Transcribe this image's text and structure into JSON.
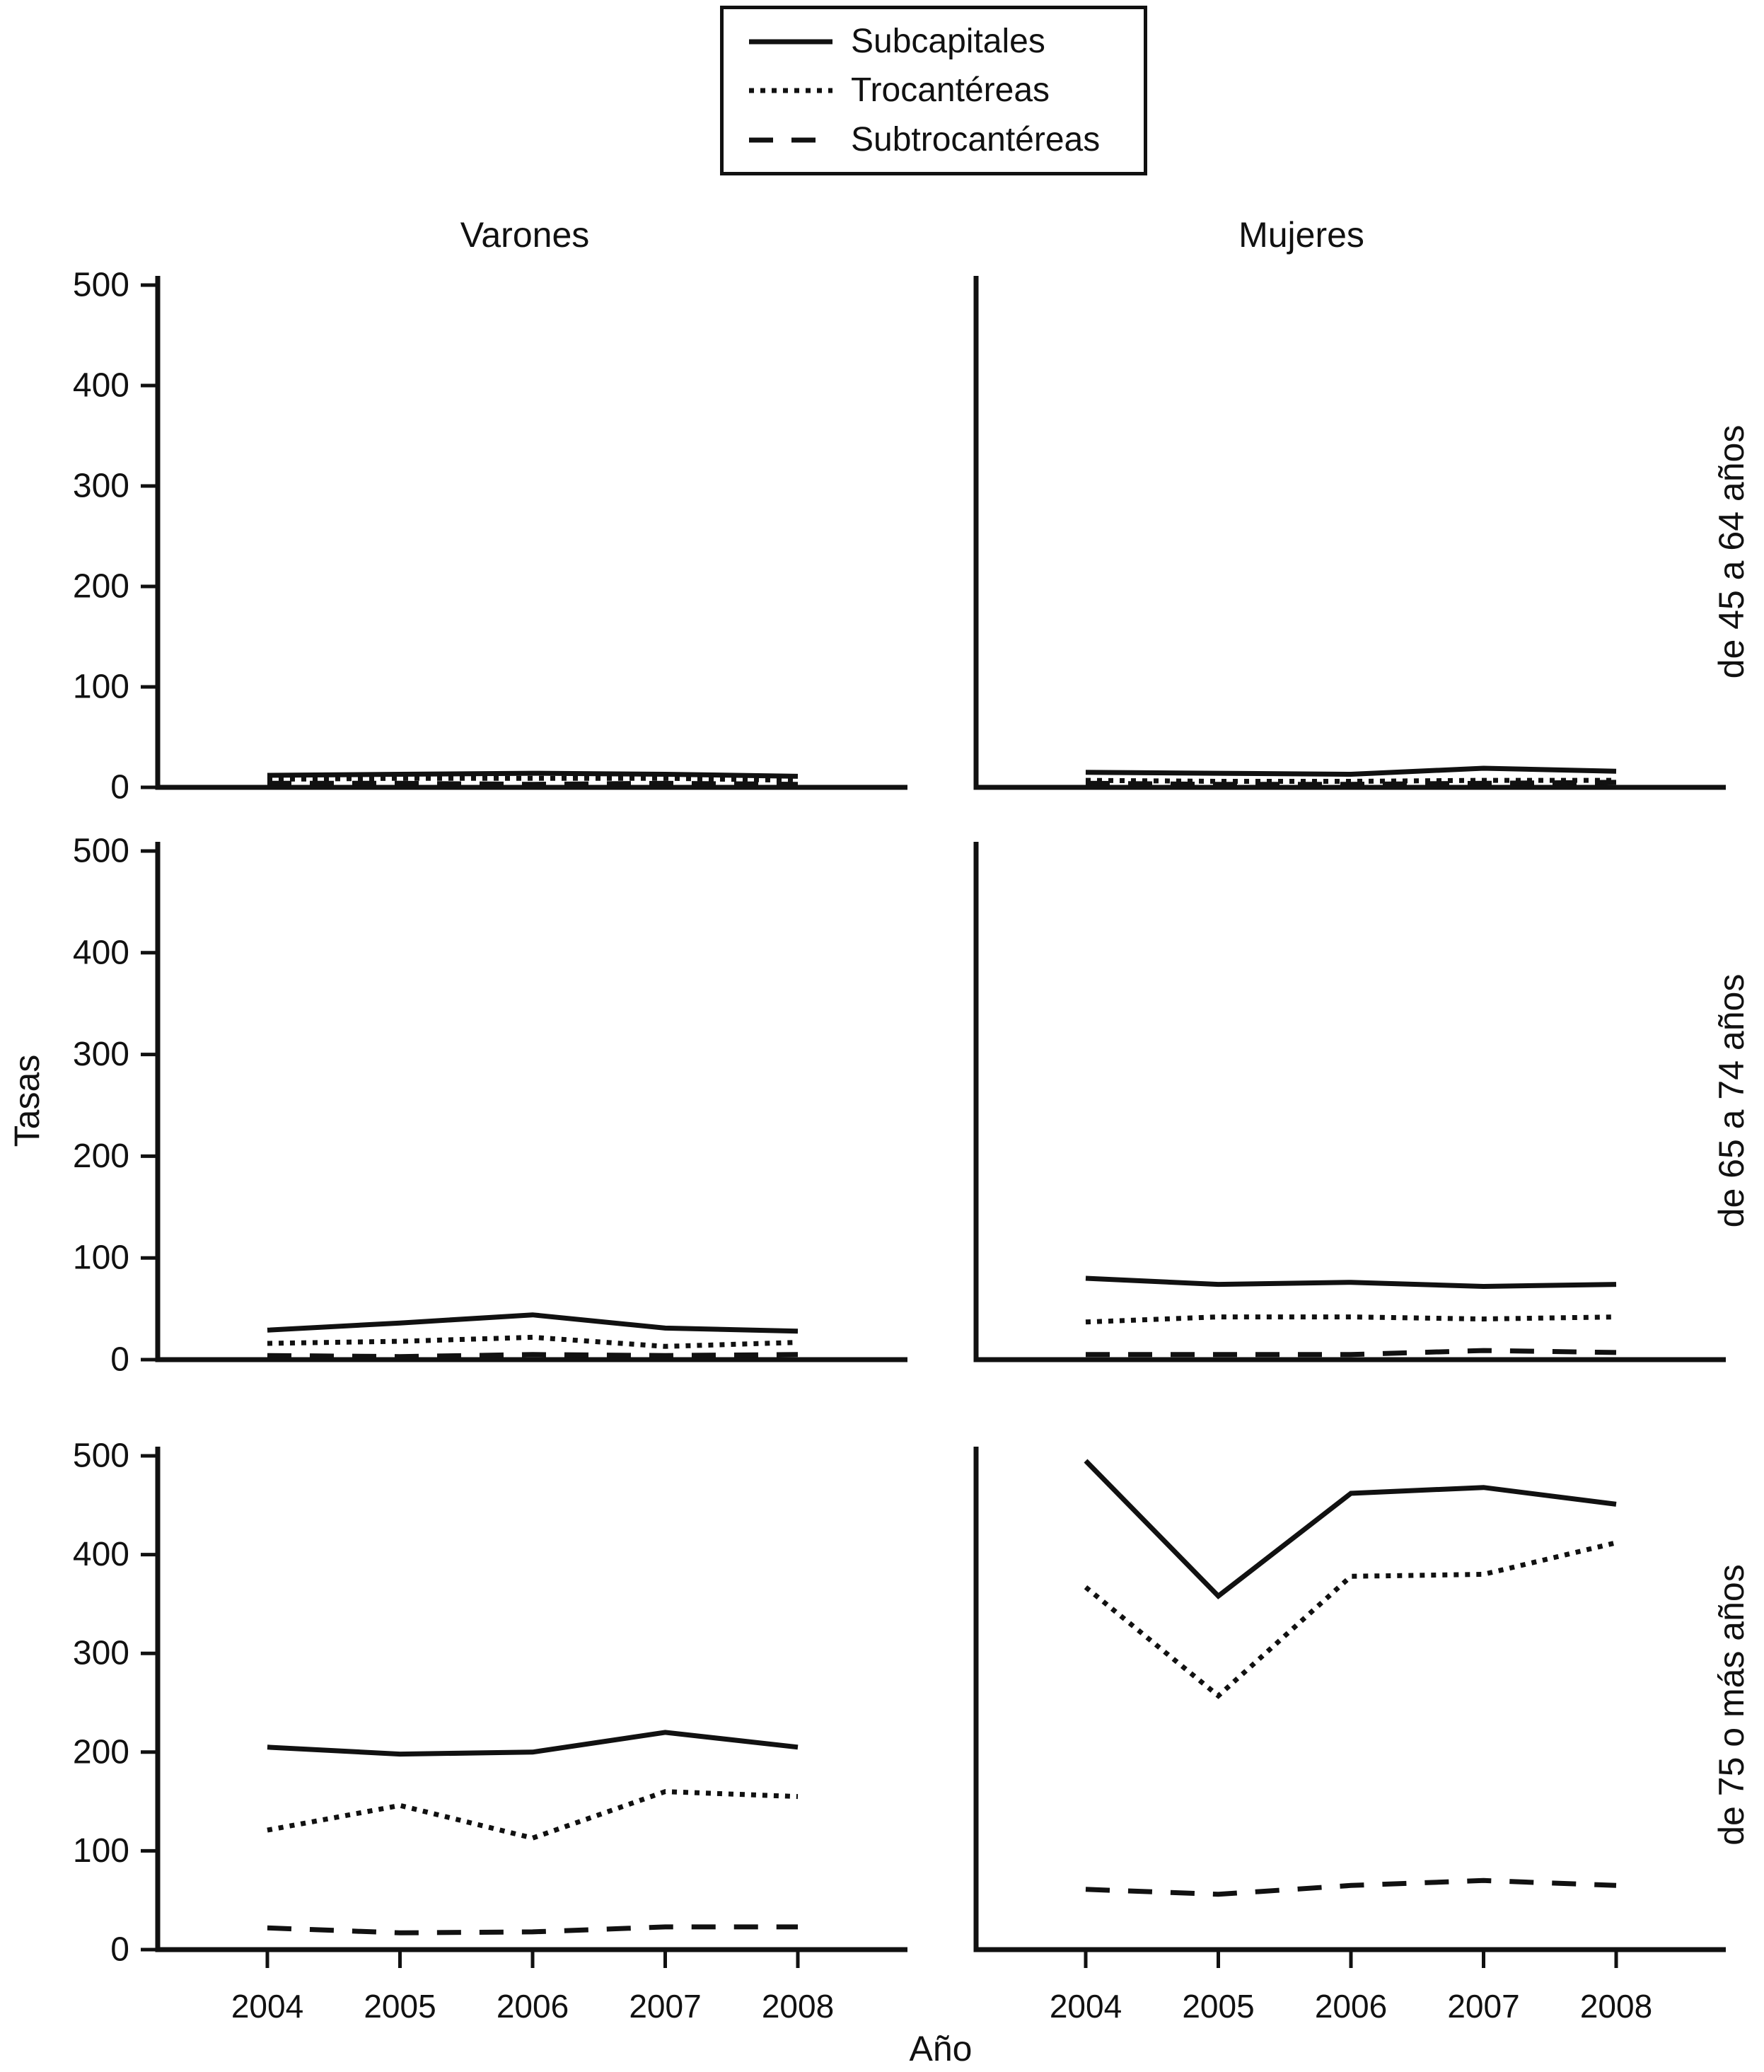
{
  "figure": {
    "background": "#ffffff",
    "ink": "#111111"
  },
  "legend": {
    "items": [
      {
        "label": "Subcapitales",
        "style": "solid"
      },
      {
        "label": "Trocantéreas",
        "style": "dotted"
      },
      {
        "label": "Subtrocantéreas",
        "style": "dashed"
      }
    ]
  },
  "columns": [
    "Varones",
    "Mujeres"
  ],
  "rows": [
    "de 45 a 64 años",
    "de 65 a 74 años",
    "de 75 o más años"
  ],
  "axes": {
    "y_label": "Tasas",
    "x_label": "Año",
    "y_ticks": [
      0,
      100,
      200,
      300,
      400,
      500
    ],
    "x_ticks": [
      2004,
      2005,
      2006,
      2007,
      2008
    ],
    "ylim": [
      0,
      520
    ],
    "grid": false,
    "legend_position": "top-center"
  },
  "chart_data": [
    {
      "type": "line",
      "column": "Varones",
      "row": "de 45 a 64 años",
      "x": [
        2004,
        2005,
        2006,
        2007,
        2008
      ],
      "series": [
        {
          "name": "Subcapitales",
          "style": "solid",
          "values": [
            12,
            13,
            14,
            13,
            11
          ]
        },
        {
          "name": "Trocantéreas",
          "style": "dotted",
          "values": [
            8,
            9,
            9,
            9,
            7
          ]
        },
        {
          "name": "Subtrocantéreas",
          "style": "dashed",
          "values": [
            4,
            4,
            3,
            4,
            3
          ]
        }
      ]
    },
    {
      "type": "line",
      "column": "Mujeres",
      "row": "de 45 a 64 años",
      "x": [
        2004,
        2005,
        2006,
        2007,
        2008
      ],
      "series": [
        {
          "name": "Subcapitales",
          "style": "solid",
          "values": [
            15,
            14,
            13,
            19,
            16
          ]
        },
        {
          "name": "Trocantéreas",
          "style": "dotted",
          "values": [
            7,
            6,
            6,
            7,
            7
          ]
        },
        {
          "name": "Subtrocantéreas",
          "style": "dashed",
          "values": [
            4,
            3,
            3,
            4,
            5
          ]
        }
      ]
    },
    {
      "type": "line",
      "column": "Varones",
      "row": "de 65 a 74 años",
      "x": [
        2004,
        2005,
        2006,
        2007,
        2008
      ],
      "series": [
        {
          "name": "Subcapitales",
          "style": "solid",
          "values": [
            29,
            36,
            44,
            31,
            28
          ]
        },
        {
          "name": "Trocantéreas",
          "style": "dotted",
          "values": [
            16,
            18,
            22,
            13,
            17
          ]
        },
        {
          "name": "Subtrocantéreas",
          "style": "dashed",
          "values": [
            4,
            3,
            5,
            4,
            5
          ]
        }
      ]
    },
    {
      "type": "line",
      "column": "Mujeres",
      "row": "de 65 a 74 años",
      "x": [
        2004,
        2005,
        2006,
        2007,
        2008
      ],
      "series": [
        {
          "name": "Subcapitales",
          "style": "solid",
          "values": [
            80,
            74,
            76,
            72,
            74
          ]
        },
        {
          "name": "Trocantéreas",
          "style": "dotted",
          "values": [
            37,
            42,
            42,
            40,
            42
          ]
        },
        {
          "name": "Subtrocantéreas",
          "style": "dashed",
          "values": [
            5,
            5,
            5,
            9,
            7
          ]
        }
      ]
    },
    {
      "type": "line",
      "column": "Varones",
      "row": "de 75 o más años",
      "x": [
        2004,
        2005,
        2006,
        2007,
        2008
      ],
      "series": [
        {
          "name": "Subcapitales",
          "style": "solid",
          "values": [
            205,
            198,
            200,
            220,
            205
          ]
        },
        {
          "name": "Trocantéreas",
          "style": "dotted",
          "values": [
            121,
            146,
            113,
            160,
            155
          ]
        },
        {
          "name": "Subtrocantéreas",
          "style": "dashed",
          "values": [
            22,
            17,
            18,
            23,
            23
          ]
        }
      ]
    },
    {
      "type": "line",
      "column": "Mujeres",
      "row": "de 75 o más años",
      "x": [
        2004,
        2005,
        2006,
        2007,
        2008
      ],
      "series": [
        {
          "name": "Subcapitales",
          "style": "solid",
          "values": [
            495,
            358,
            462,
            468,
            451
          ]
        },
        {
          "name": "Trocantéreas",
          "style": "dotted",
          "values": [
            367,
            257,
            378,
            380,
            412
          ]
        },
        {
          "name": "Subtrocantéreas",
          "style": "dashed",
          "values": [
            61,
            56,
            65,
            70,
            65
          ]
        }
      ]
    }
  ]
}
